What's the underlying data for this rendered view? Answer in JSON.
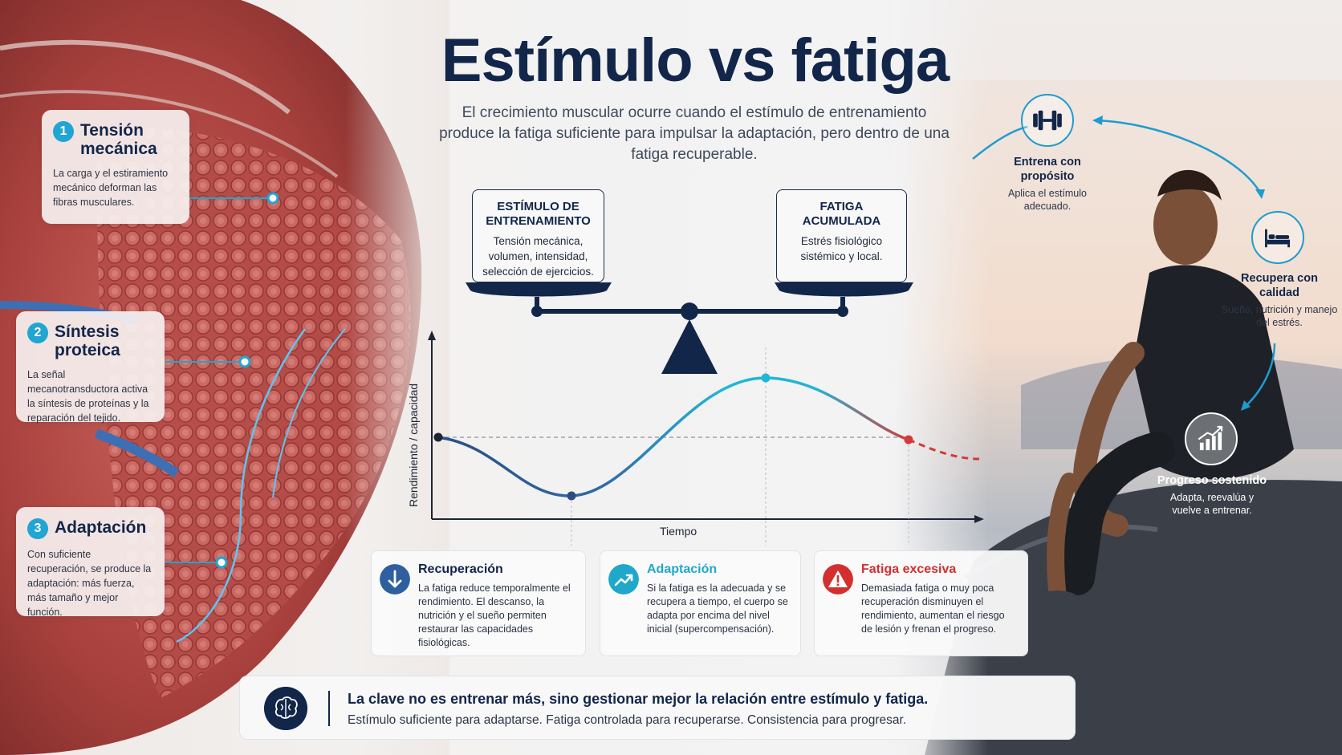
{
  "title": "Estímulo vs fatiga",
  "subtitle": "El crecimiento muscular ocurre cuando el estímulo de entrenamiento produce la fatiga suficiente para impulsar la adaptación, pero dentro de una fatiga recuperable.",
  "callouts": [
    {
      "num": "1",
      "title": "Tensión mecánica",
      "body": "La carga y el estiramiento mecánico deforman las fibras musculares."
    },
    {
      "num": "2",
      "title": "Síntesis proteica",
      "body": "La señal mecanotransductora activa la síntesis de proteínas y la reparación del tejido."
    },
    {
      "num": "3",
      "title": "Adaptación",
      "body": "Con suficiente recuperación, se produce la adaptación: más fuerza, más tamaño y mejor función."
    }
  ],
  "scale": {
    "left": {
      "title": "ESTÍMULO DE ENTRENAMIENTO",
      "body": "Tensión mecánica, volumen, intensidad, selección de ejercicios."
    },
    "right": {
      "title": "FATIGA ACUMULADA",
      "body": "Estrés fisiológico sistémico y local."
    }
  },
  "chart": {
    "xlabel": "Tiempo",
    "ylabel": "Rendimiento / capacidad"
  },
  "cards": [
    {
      "title": "Recuperación",
      "body": "La fatiga reduce temporalmente el rendimiento. El descanso, la nutrición y el sueño permiten restaurar las capacidades fisiológicas.",
      "color": "#2f5f9e",
      "icon": "arrow-down-icon"
    },
    {
      "title": "Adaptación",
      "body": "Si la fatiga es la adecuada y se recupera a tiempo, el cuerpo se adapta por encima del nivel inicial (supercompensación).",
      "color": "#1fa8c9",
      "icon": "trend-up-icon"
    },
    {
      "title": "Fatiga excesiva",
      "body": "Demasiada fatiga o muy poca recuperación disminuyen el rendimiento, aumentan el riesgo de lesión y frenan el progreso.",
      "color": "#d32f2f",
      "icon": "warning-icon"
    }
  ],
  "banner": {
    "main": "La clave no es entrenar más, sino gestionar mejor la relación entre estímulo y fatiga.",
    "sub": "Estímulo suficiente para adaptarse. Fatiga controlada para recuperarse. Consistencia para progresar.",
    "icon": "brain-icon"
  },
  "cycle": [
    {
      "title": "Entrena con propósito",
      "body": "Aplica el estímulo adecuado.",
      "icon": "dumbbell-icon"
    },
    {
      "title": "Recupera con calidad",
      "body": "Sueño, nutrición y manejo del estrés.",
      "icon": "bed-icon"
    },
    {
      "title": "Progreso sostenido",
      "body": "Adapta, reevalúa y vuelve a entrenar.",
      "icon": "bar-chart-icon"
    }
  ],
  "colors": {
    "navy": "#12264a",
    "accent": "#21a5d2",
    "danger": "#d32f2f"
  }
}
